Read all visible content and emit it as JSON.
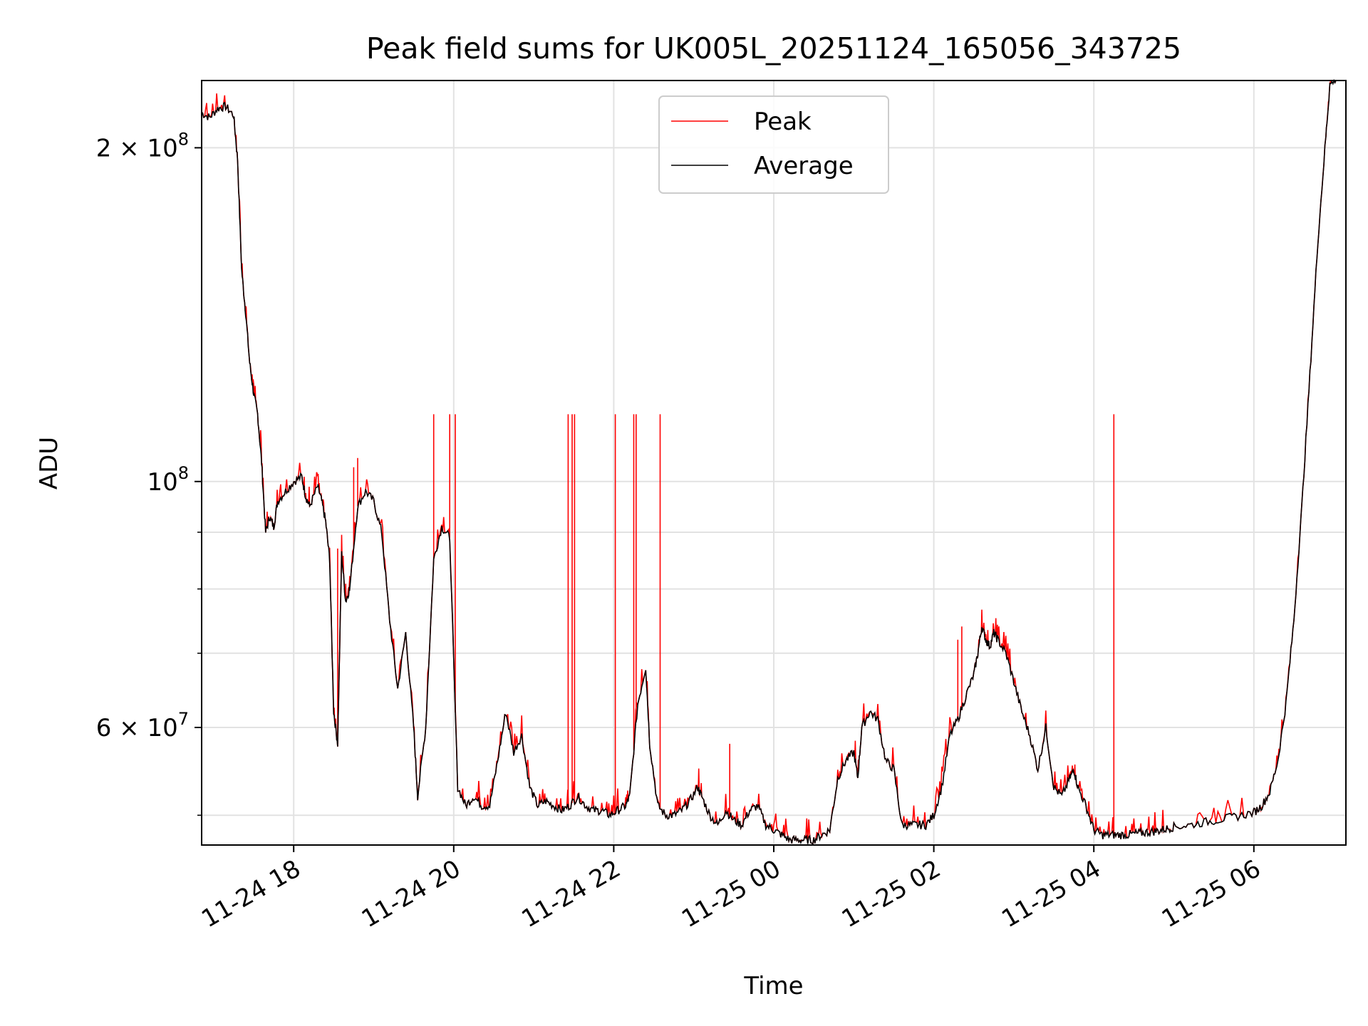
{
  "chart_data": {
    "type": "line",
    "title": "Peak field sums for UK005L_20251124_165056_343725",
    "xlabel": "Time",
    "ylabel": "ADU",
    "yscale": "log",
    "grid": true,
    "legend_position": "top-center",
    "x_unit": "hours since 2025-11-24 00:00",
    "xlim": [
      16.85,
      31.15
    ],
    "ylim": [
      47000000,
      230000000
    ],
    "x_ticks": [
      {
        "value": 18,
        "label": "11-24 18"
      },
      {
        "value": 20,
        "label": "11-24 20"
      },
      {
        "value": 22,
        "label": "11-24 22"
      },
      {
        "value": 24,
        "label": "11-25 00"
      },
      {
        "value": 26,
        "label": "11-25 02"
      },
      {
        "value": 28,
        "label": "11-25 04"
      },
      {
        "value": 30,
        "label": "11-25 06"
      }
    ],
    "y_ticks": [
      {
        "value": 60000000,
        "label": "6 × 10",
        "exp": "7"
      },
      {
        "value": 100000000,
        "label": "10",
        "exp": "8"
      },
      {
        "value": 200000000,
        "label": "2 × 10",
        "exp": "8"
      }
    ],
    "y_minor_ticks": [
      50000000,
      70000000,
      80000000,
      90000000
    ],
    "series": [
      {
        "name": "Average",
        "color": "#000000",
        "points": [
          [
            16.85,
            215000000
          ],
          [
            16.95,
            213000000
          ],
          [
            17.05,
            217000000
          ],
          [
            17.15,
            218000000
          ],
          [
            17.25,
            214000000
          ],
          [
            17.3,
            195000000
          ],
          [
            17.35,
            155000000
          ],
          [
            17.4,
            142000000
          ],
          [
            17.45,
            128000000
          ],
          [
            17.5,
            120000000
          ],
          [
            17.55,
            115000000
          ],
          [
            17.6,
            104000000
          ],
          [
            17.65,
            90000000
          ],
          [
            17.7,
            93000000
          ],
          [
            17.75,
            91000000
          ],
          [
            17.8,
            96000000
          ],
          [
            17.9,
            98000000
          ],
          [
            18.0,
            100000000
          ],
          [
            18.1,
            101000000
          ],
          [
            18.15,
            97000000
          ],
          [
            18.2,
            95000000
          ],
          [
            18.3,
            99000000
          ],
          [
            18.35,
            96000000
          ],
          [
            18.4,
            92000000
          ],
          [
            18.45,
            85000000
          ],
          [
            18.5,
            62000000
          ],
          [
            18.55,
            58000000
          ],
          [
            18.6,
            86000000
          ],
          [
            18.65,
            78000000
          ],
          [
            18.7,
            80000000
          ],
          [
            18.8,
            95000000
          ],
          [
            18.9,
            98000000
          ],
          [
            19.0,
            96000000
          ],
          [
            19.1,
            90000000
          ],
          [
            19.2,
            75000000
          ],
          [
            19.3,
            65000000
          ],
          [
            19.4,
            73000000
          ],
          [
            19.5,
            60000000
          ],
          [
            19.55,
            52000000
          ],
          [
            19.65,
            60000000
          ],
          [
            19.75,
            85000000
          ],
          [
            19.85,
            91000000
          ],
          [
            19.95,
            89000000
          ],
          [
            20.05,
            53000000
          ],
          [
            20.15,
            51000000
          ],
          [
            20.25,
            52000000
          ],
          [
            20.35,
            51000000
          ],
          [
            20.45,
            51000000
          ],
          [
            20.55,
            56000000
          ],
          [
            20.65,
            62000000
          ],
          [
            20.75,
            57000000
          ],
          [
            20.85,
            59000000
          ],
          [
            20.95,
            53000000
          ],
          [
            21.05,
            51000000
          ],
          [
            21.15,
            51500000
          ],
          [
            21.25,
            51000000
          ],
          [
            21.35,
            50500000
          ],
          [
            21.45,
            51000000
          ],
          [
            21.55,
            52000000
          ],
          [
            21.65,
            51000000
          ],
          [
            21.75,
            50500000
          ],
          [
            21.85,
            50500000
          ],
          [
            21.95,
            50000000
          ],
          [
            22.05,
            50500000
          ],
          [
            22.15,
            51000000
          ],
          [
            22.2,
            52000000
          ],
          [
            22.3,
            63000000
          ],
          [
            22.4,
            68000000
          ],
          [
            22.45,
            58000000
          ],
          [
            22.55,
            51000000
          ],
          [
            22.65,
            50000000
          ],
          [
            22.75,
            50000000
          ],
          [
            22.85,
            50500000
          ],
          [
            22.95,
            51500000
          ],
          [
            23.05,
            53000000
          ],
          [
            23.1,
            52000000
          ],
          [
            23.2,
            50000000
          ],
          [
            23.3,
            49000000
          ],
          [
            23.4,
            50500000
          ],
          [
            23.5,
            49500000
          ],
          [
            23.6,
            49000000
          ],
          [
            23.7,
            50500000
          ],
          [
            23.8,
            51000000
          ],
          [
            23.9,
            49000000
          ],
          [
            24.0,
            48500000
          ],
          [
            24.1,
            48000000
          ],
          [
            24.2,
            47500000
          ],
          [
            24.3,
            47500000
          ],
          [
            24.4,
            47500000
          ],
          [
            24.5,
            47500000
          ],
          [
            24.6,
            48000000
          ],
          [
            24.7,
            48500000
          ],
          [
            24.8,
            54000000
          ],
          [
            24.9,
            56000000
          ],
          [
            25.0,
            57000000
          ],
          [
            25.05,
            54000000
          ],
          [
            25.1,
            60000000
          ],
          [
            25.2,
            62000000
          ],
          [
            25.3,
            61000000
          ],
          [
            25.4,
            56000000
          ],
          [
            25.5,
            55000000
          ],
          [
            25.6,
            49000000
          ],
          [
            25.7,
            49000000
          ],
          [
            25.8,
            49000000
          ],
          [
            25.9,
            49000000
          ],
          [
            26.0,
            50000000
          ],
          [
            26.1,
            53000000
          ],
          [
            26.2,
            59000000
          ],
          [
            26.3,
            61000000
          ],
          [
            26.4,
            64000000
          ],
          [
            26.5,
            67000000
          ],
          [
            26.55,
            70000000
          ],
          [
            26.6,
            74000000
          ],
          [
            26.65,
            72000000
          ],
          [
            26.7,
            71000000
          ],
          [
            26.75,
            73000000
          ],
          [
            26.8,
            72000000
          ],
          [
            26.9,
            70000000
          ],
          [
            27.0,
            66000000
          ],
          [
            27.1,
            62000000
          ],
          [
            27.2,
            59000000
          ],
          [
            27.3,
            55000000
          ],
          [
            27.4,
            60000000
          ],
          [
            27.5,
            53000000
          ],
          [
            27.6,
            52000000
          ],
          [
            27.7,
            54000000
          ],
          [
            27.75,
            55000000
          ],
          [
            27.8,
            53000000
          ],
          [
            27.9,
            51000000
          ],
          [
            28.0,
            48500000
          ],
          [
            28.1,
            48000000
          ],
          [
            28.2,
            48000000
          ],
          [
            28.3,
            48000000
          ],
          [
            28.4,
            48000000
          ],
          [
            28.5,
            48100000
          ],
          [
            28.6,
            48200000
          ],
          [
            28.7,
            48300000
          ],
          [
            28.8,
            48400000
          ],
          [
            28.9,
            48600000
          ],
          [
            29.0,
            48800000
          ],
          [
            29.2,
            49000000
          ],
          [
            29.4,
            49300000
          ],
          [
            29.6,
            49600000
          ],
          [
            29.8,
            49900000
          ],
          [
            30.0,
            50300000
          ],
          [
            30.1,
            51000000
          ],
          [
            30.2,
            52500000
          ],
          [
            30.3,
            56000000
          ],
          [
            30.4,
            63000000
          ],
          [
            30.5,
            75000000
          ],
          [
            30.6,
            95000000
          ],
          [
            30.7,
            125000000
          ],
          [
            30.8,
            165000000
          ],
          [
            30.9,
            205000000
          ],
          [
            30.95,
            228000000
          ],
          [
            31.05,
            232000000
          ],
          [
            31.15,
            232000000
          ]
        ]
      },
      {
        "name": "Peak",
        "color": "#ff0000",
        "spikes": [
          {
            "x": 19.75,
            "y": 115000000
          },
          {
            "x": 19.95,
            "y": 115000000
          },
          {
            "x": 20.02,
            "y": 115000000
          },
          {
            "x": 21.43,
            "y": 115000000
          },
          {
            "x": 21.48,
            "y": 115000000
          },
          {
            "x": 21.51,
            "y": 115000000
          },
          {
            "x": 22.02,
            "y": 115000000
          },
          {
            "x": 22.25,
            "y": 115000000
          },
          {
            "x": 22.28,
            "y": 115000000
          },
          {
            "x": 22.58,
            "y": 115000000
          },
          {
            "x": 28.25,
            "y": 115000000
          },
          {
            "x": 18.55,
            "y": 87000000
          },
          {
            "x": 18.75,
            "y": 103000000
          },
          {
            "x": 18.8,
            "y": 105000000
          },
          {
            "x": 26.3,
            "y": 72000000
          },
          {
            "x": 26.35,
            "y": 74000000
          },
          {
            "x": 23.45,
            "y": 58000000
          }
        ]
      }
    ]
  }
}
